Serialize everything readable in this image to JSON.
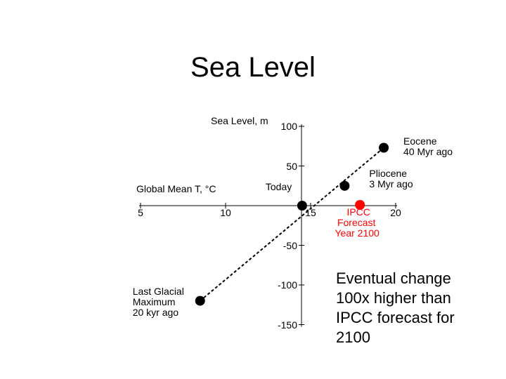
{
  "slide": {
    "title": "Sea Level",
    "callout": [
      "Eventual change",
      "100x higher than",
      "IPCC forecast for",
      "2100"
    ]
  },
  "chart_data": {
    "type": "scatter",
    "title": "",
    "xlabel": "Global Mean T, °C",
    "ylabel": "Sea Level, m",
    "xlim": [
      5,
      20
    ],
    "ylim": [
      -150,
      100
    ],
    "x_ticks": [
      5,
      10,
      15,
      20
    ],
    "y_ticks": [
      100,
      50,
      -50,
      -100,
      -150
    ],
    "points": [
      {
        "label": "Last Glacial Maximum 20 kyr ago",
        "label_lines": [
          "Last Glacial",
          "Maximum",
          "20 kyr ago"
        ],
        "x": 8.5,
        "y": -120,
        "color": "#000000"
      },
      {
        "label": "Today",
        "label_lines": [
          "Today"
        ],
        "x": 14.5,
        "y": 0,
        "color": "#000000"
      },
      {
        "label": "Pliocene 3 Myr ago",
        "label_lines": [
          "Pliocene",
          "3 Myr ago"
        ],
        "x": 17,
        "y": 25,
        "color": "#000000"
      },
      {
        "label": "Eocene 40 Myr ago",
        "label_lines": [
          "Eocene",
          "40 Myr ago"
        ],
        "x": 19.3,
        "y": 73,
        "color": "#000000"
      },
      {
        "label": "IPCC Forecast Year 2100",
        "label_lines": [
          "IPCC",
          "Forecast",
          "Year 2100"
        ],
        "x": 17.9,
        "y": 1,
        "color": "#ff0000"
      }
    ],
    "trend_line": {
      "style": "dashed",
      "through": [
        "Last Glacial Maximum 20 kyr ago",
        "Today",
        "Pliocene 3 Myr ago",
        "Eocene 40 Myr ago"
      ]
    },
    "grid": false,
    "legend": "none"
  }
}
